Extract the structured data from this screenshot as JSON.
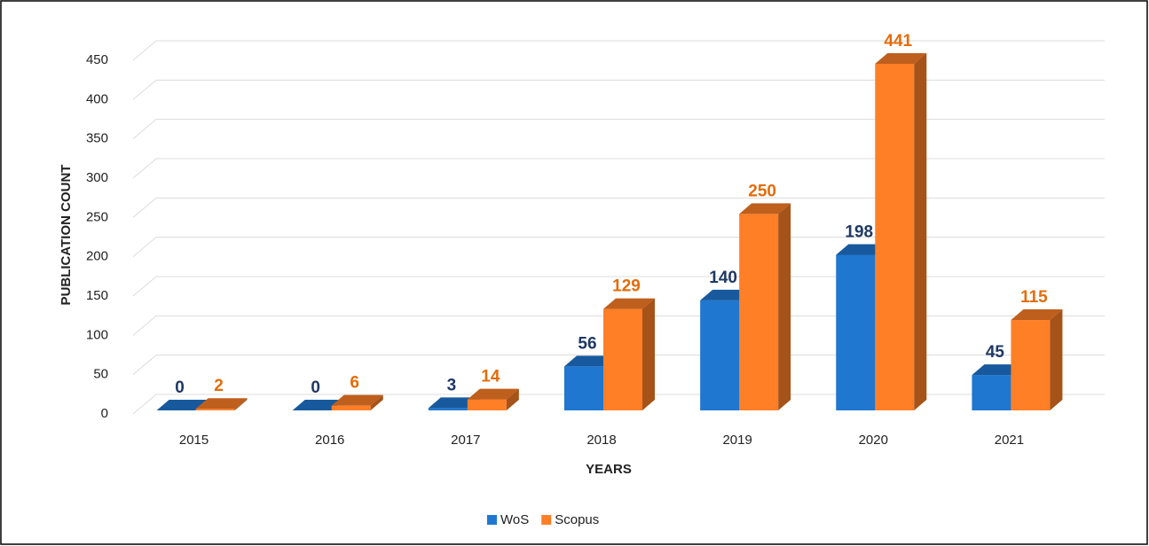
{
  "chart_data": {
    "type": "bar3d",
    "x_label": "YEARS",
    "y_label": "PUBLICATION COUNT",
    "categories": [
      "2015",
      "2016",
      "2017",
      "2018",
      "2019",
      "2020",
      "2021"
    ],
    "series": [
      {
        "name": "WoS",
        "color": "#1f77d0",
        "label_color": "#1f3864",
        "values": [
          0,
          0,
          3,
          56,
          140,
          198,
          45
        ]
      },
      {
        "name": "Scopus",
        "color": "#ff7f27",
        "label_color": "#e46c0a",
        "values": [
          2,
          6,
          14,
          129,
          250,
          441,
          115
        ]
      }
    ],
    "ylim": [
      0,
      450
    ],
    "yticks": [
      0,
      50,
      100,
      150,
      200,
      250,
      300,
      350,
      400,
      450
    ],
    "grid": true,
    "legend": "bottom"
  }
}
